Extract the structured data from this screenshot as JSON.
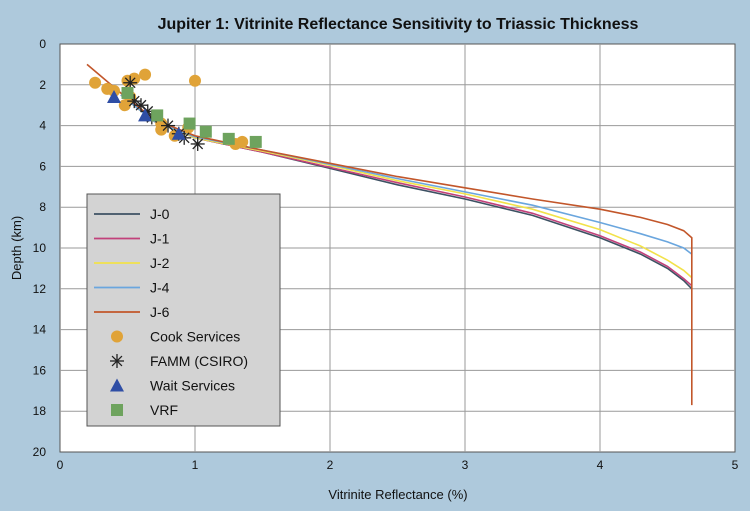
{
  "chart_data": {
    "type": "line",
    "title": "Jupiter 1: Vitrinite Reflectance Sensitivity to Triassic Thickness",
    "xlabel": "Vitrinite Reflectance (%)",
    "ylabel": "Depth (km)",
    "xlim": [
      0,
      5
    ],
    "ylim": [
      0,
      20
    ],
    "y_inverted": true,
    "x_ticks": [
      "0",
      "1",
      "2",
      "3",
      "4",
      "5"
    ],
    "y_ticks": [
      "0",
      "2",
      "4",
      "6",
      "8",
      "10",
      "12",
      "14",
      "16",
      "18",
      "20"
    ],
    "grid": true,
    "legend_position": "lower-left",
    "colors": {
      "background": "#aec9dc",
      "plot_bg": "#ffffff",
      "legend_bg": "#d3d3d3",
      "grid": "#9a9a9a"
    },
    "series": [
      {
        "name": "J-0",
        "color": "#3d5163",
        "points": [
          [
            0.45,
            2.5
          ],
          [
            0.7,
            3.8
          ],
          [
            1.0,
            4.6
          ],
          [
            1.5,
            5.3
          ],
          [
            2.0,
            6.1
          ],
          [
            2.5,
            6.9
          ],
          [
            3.0,
            7.6
          ],
          [
            3.5,
            8.4
          ],
          [
            4.0,
            9.5
          ],
          [
            4.3,
            10.3
          ],
          [
            4.5,
            11.0
          ],
          [
            4.62,
            11.6
          ],
          [
            4.68,
            12.0
          ]
        ]
      },
      {
        "name": "J-1",
        "color": "#c2417a",
        "points": [
          [
            0.45,
            2.5
          ],
          [
            0.7,
            3.8
          ],
          [
            1.0,
            4.6
          ],
          [
            1.5,
            5.3
          ],
          [
            2.0,
            6.05
          ],
          [
            2.5,
            6.8
          ],
          [
            3.0,
            7.5
          ],
          [
            3.5,
            8.3
          ],
          [
            4.0,
            9.4
          ],
          [
            4.3,
            10.2
          ],
          [
            4.5,
            10.9
          ],
          [
            4.62,
            11.5
          ],
          [
            4.68,
            11.85
          ]
        ]
      },
      {
        "name": "J-2",
        "color": "#f2e24a",
        "points": [
          [
            0.45,
            2.5
          ],
          [
            0.7,
            3.8
          ],
          [
            1.0,
            4.6
          ],
          [
            1.5,
            5.25
          ],
          [
            2.0,
            5.95
          ],
          [
            2.5,
            6.7
          ],
          [
            3.0,
            7.35
          ],
          [
            3.5,
            8.1
          ],
          [
            4.0,
            9.1
          ],
          [
            4.3,
            9.9
          ],
          [
            4.5,
            10.6
          ],
          [
            4.62,
            11.1
          ],
          [
            4.68,
            11.45
          ]
        ]
      },
      {
        "name": "J-4",
        "color": "#6aa6de",
        "points": [
          [
            0.45,
            2.5
          ],
          [
            0.7,
            3.8
          ],
          [
            1.0,
            4.55
          ],
          [
            1.5,
            5.2
          ],
          [
            2.0,
            5.9
          ],
          [
            2.5,
            6.6
          ],
          [
            3.0,
            7.25
          ],
          [
            3.5,
            7.9
          ],
          [
            4.0,
            8.75
          ],
          [
            4.3,
            9.3
          ],
          [
            4.5,
            9.7
          ],
          [
            4.62,
            10.0
          ],
          [
            4.68,
            10.3
          ]
        ]
      },
      {
        "name": "J-6",
        "color": "#c2562a",
        "points": [
          [
            0.2,
            1.0
          ],
          [
            0.45,
            2.4
          ],
          [
            0.7,
            3.7
          ],
          [
            1.0,
            4.5
          ],
          [
            1.5,
            5.2
          ],
          [
            2.0,
            5.85
          ],
          [
            2.5,
            6.5
          ],
          [
            3.0,
            7.05
          ],
          [
            3.5,
            7.6
          ],
          [
            4.0,
            8.1
          ],
          [
            4.3,
            8.5
          ],
          [
            4.5,
            8.85
          ],
          [
            4.62,
            9.15
          ],
          [
            4.68,
            9.5
          ],
          [
            4.68,
            17.7
          ]
        ]
      }
    ],
    "markers": [
      {
        "name": "Cook Services",
        "shape": "circle",
        "color": "#e0a338",
        "points": [
          [
            0.26,
            1.9
          ],
          [
            0.35,
            2.2
          ],
          [
            0.4,
            2.3
          ],
          [
            0.5,
            1.8
          ],
          [
            0.55,
            1.7
          ],
          [
            0.63,
            1.5
          ],
          [
            1.0,
            1.8
          ],
          [
            0.52,
            2.6
          ],
          [
            0.48,
            3.0
          ],
          [
            0.75,
            3.9
          ],
          [
            0.75,
            4.2
          ],
          [
            0.85,
            4.5
          ],
          [
            0.95,
            4.1
          ],
          [
            1.3,
            4.9
          ],
          [
            1.35,
            4.8
          ]
        ]
      },
      {
        "name": "FAMM (CSIRO)",
        "shape": "asterisk",
        "color": "#222222",
        "points": [
          [
            0.52,
            1.9
          ],
          [
            0.55,
            2.8
          ],
          [
            0.6,
            3.0
          ],
          [
            0.65,
            3.3
          ],
          [
            0.68,
            3.6
          ],
          [
            0.8,
            4.0
          ],
          [
            0.88,
            4.4
          ],
          [
            0.92,
            4.6
          ],
          [
            1.02,
            4.9
          ]
        ]
      },
      {
        "name": "Wait Services",
        "shape": "triangle",
        "color": "#2f4ea5",
        "points": [
          [
            0.4,
            2.6
          ],
          [
            0.63,
            3.5
          ],
          [
            0.88,
            4.4
          ]
        ]
      },
      {
        "name": "VRF",
        "shape": "square",
        "color": "#6ea35e",
        "points": [
          [
            0.5,
            2.4
          ],
          [
            0.72,
            3.5
          ],
          [
            0.96,
            3.9
          ],
          [
            1.08,
            4.3
          ],
          [
            1.25,
            4.65
          ],
          [
            1.45,
            4.8
          ]
        ]
      }
    ]
  }
}
